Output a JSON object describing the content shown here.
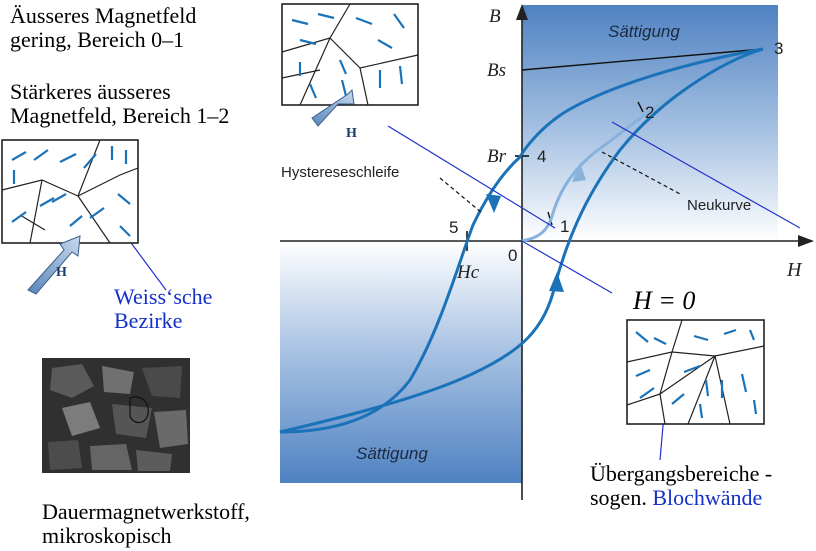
{
  "captions": {
    "weak_field_line1": "Äusseres Magnetfeld",
    "weak_field_line2": "gering, Bereich 0–1",
    "strong_field_line1": "Stärkeres äusseres",
    "strong_field_line2": "Magnetfeld, Bereich 1–2",
    "weiss_line1": "Weiss‘sche",
    "weiss_line2": "Bezirke",
    "h_zero": "H = 0",
    "transition_line1": "Übergangsbereiche -",
    "transition_line2_prefix": "sogen.",
    "transition_line2_blue": "Blochwände",
    "permanent_line1": "Dauermagnetwerkstoff,",
    "permanent_line2": "mikroskopisch"
  },
  "chart": {
    "axis_y": "B",
    "axis_x": "H",
    "saturation_top": "Sättigung",
    "saturation_bottom": "Sättigung",
    "label_bs": "Bs",
    "label_br": "Br",
    "label_hc": "Hc",
    "origin": "0",
    "points": [
      "1",
      "2",
      "3",
      "4",
      "5"
    ],
    "label_hysteresis": "Hystereseschleife",
    "label_neukurve": "Neukurve",
    "field_vector": "H⃗"
  },
  "colors": {
    "curve": "#1a72b8",
    "neukurve": "#86b2dc",
    "annotation_line": "#2233cc",
    "saturation_fill": "#4d7fbe"
  }
}
